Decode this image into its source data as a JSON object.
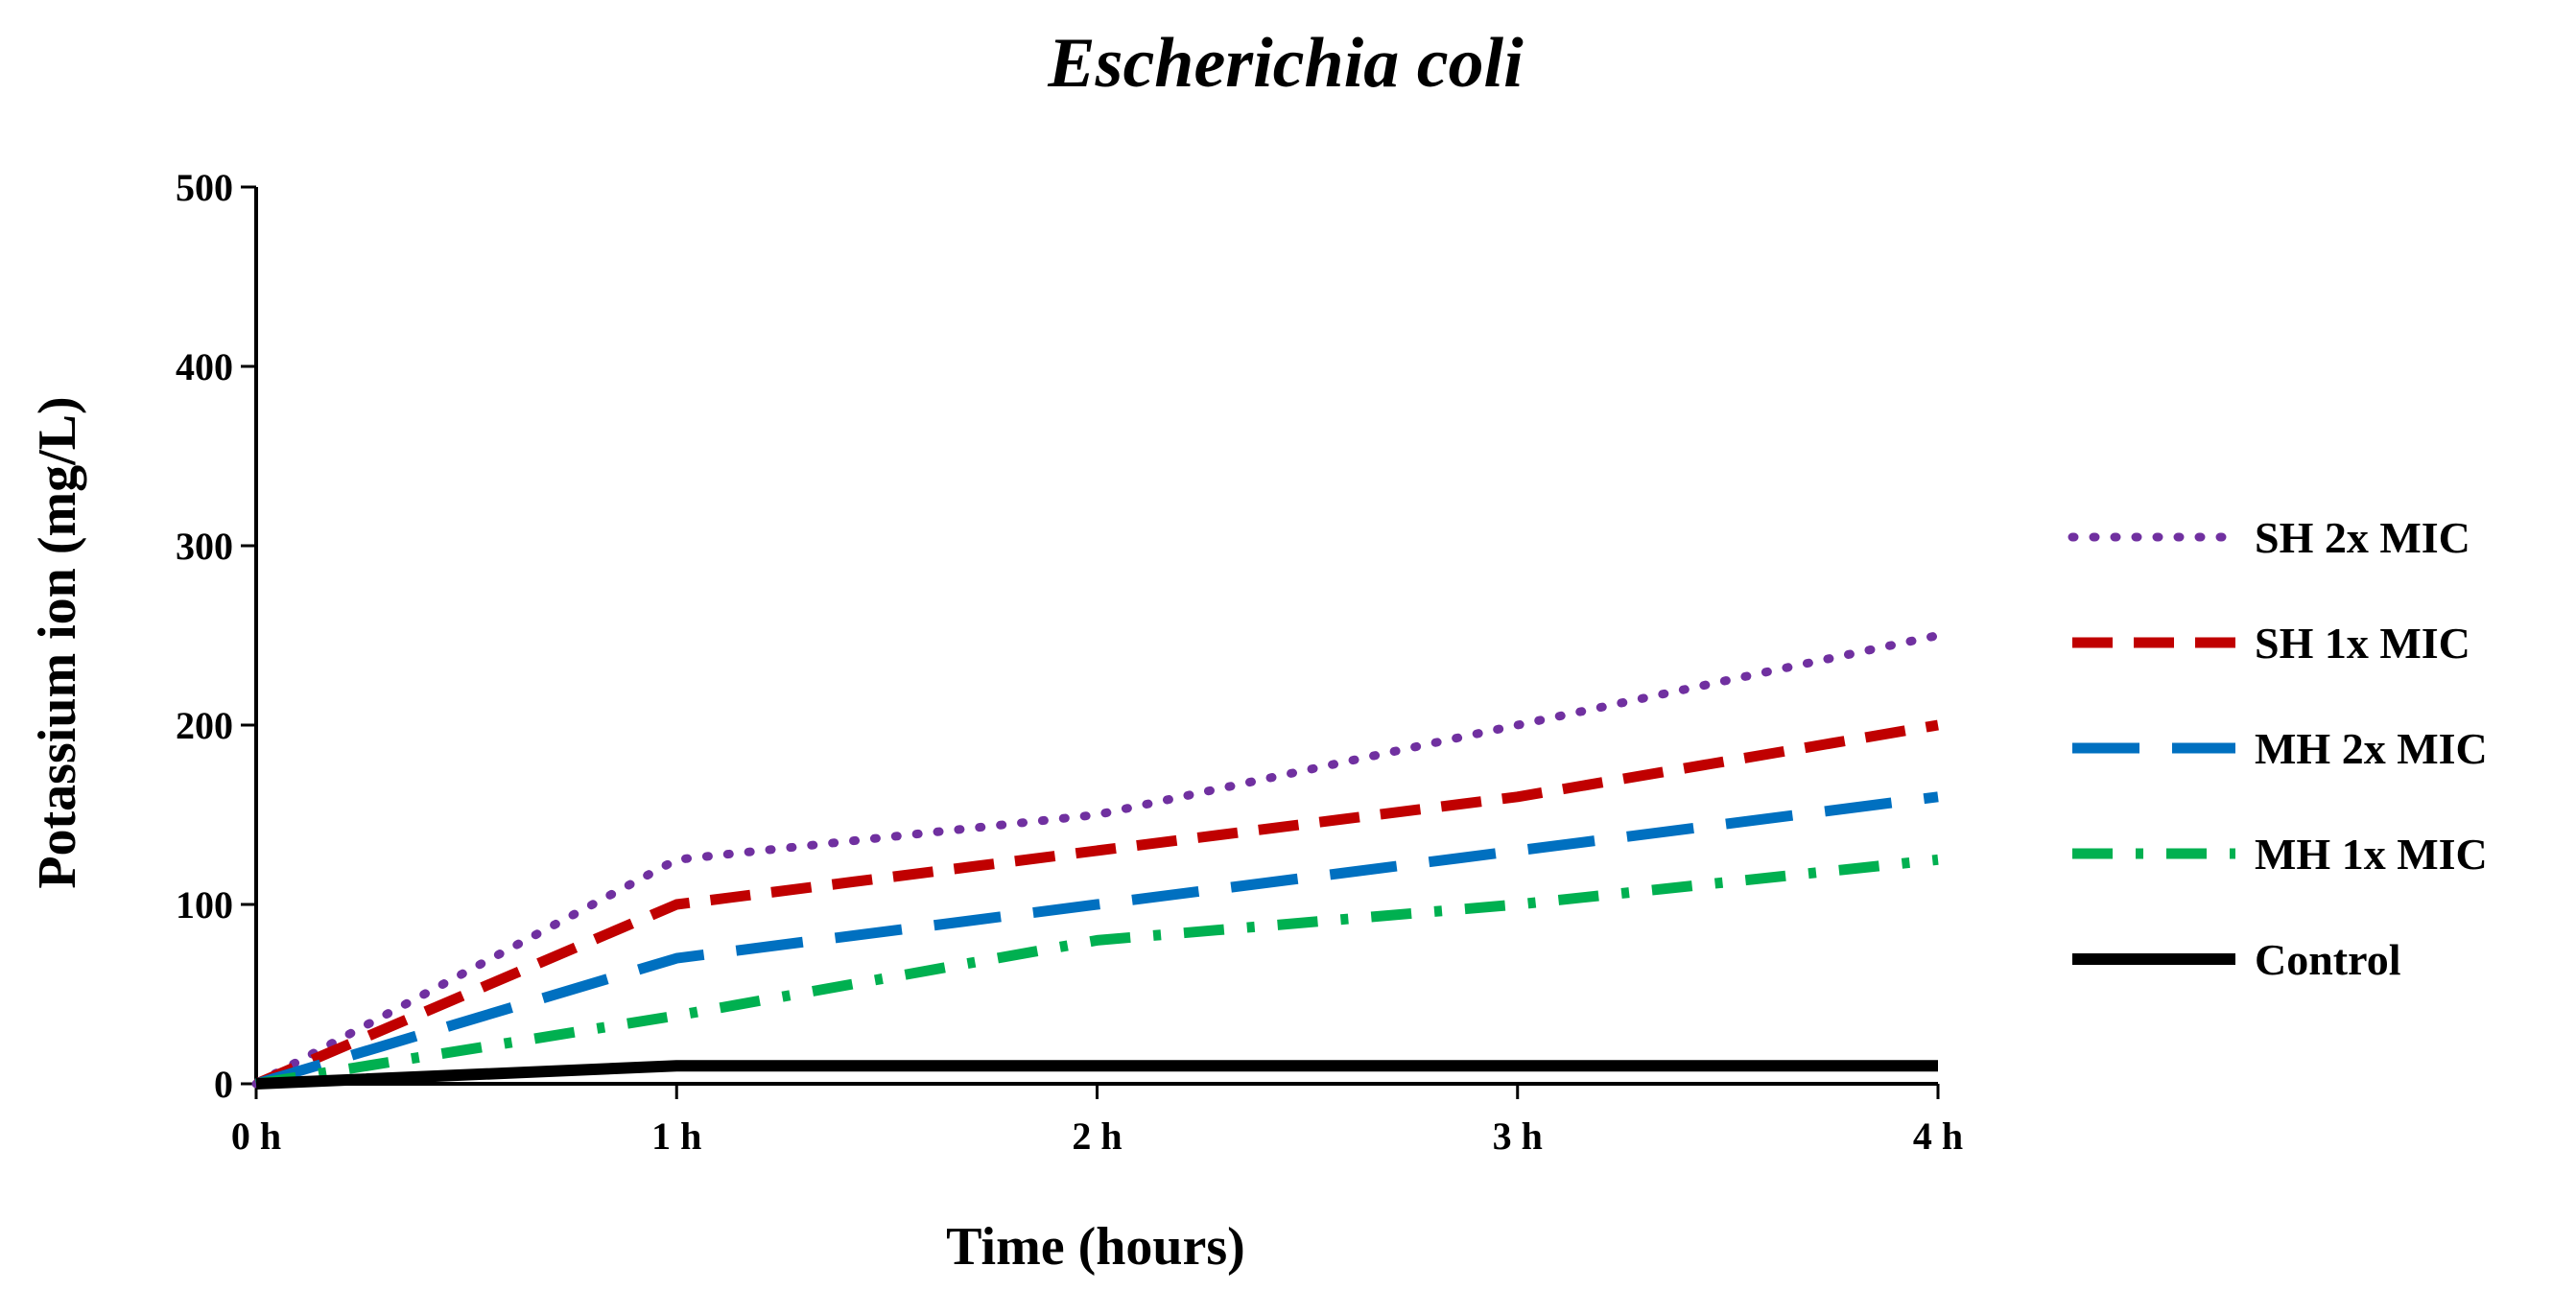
{
  "chart_data": {
    "type": "line",
    "title": "Escherichia coli",
    "xlabel": "Time (hours)",
    "ylabel": "Potassium ion (mg/L)",
    "x": [
      0,
      1,
      2,
      3,
      4
    ],
    "x_tick_labels": [
      "0 h",
      "1 h",
      "2 h",
      "3 h",
      "4 h"
    ],
    "xlim": [
      0,
      4
    ],
    "ylim": [
      0,
      500
    ],
    "y_ticks": [
      0,
      100,
      200,
      300,
      400,
      500
    ],
    "y_tick_labels": [
      "0",
      "100",
      "200",
      "300",
      "400",
      "500"
    ],
    "grid": false,
    "legend_position": "right",
    "series": [
      {
        "name": "SH 2x MIC",
        "values": [
          0,
          125,
          150,
          200,
          250
        ],
        "color": "#7030A0",
        "style": "dotted"
      },
      {
        "name": "SH 1x MIC",
        "values": [
          0,
          100,
          130,
          160,
          200
        ],
        "color": "#C00000",
        "style": "dashed"
      },
      {
        "name": "MH 2x MIC",
        "values": [
          0,
          70,
          100,
          130,
          160
        ],
        "color": "#0070C0",
        "style": "long-dash"
      },
      {
        "name": "MH 1x MIC",
        "values": [
          0,
          38,
          80,
          100,
          125
        ],
        "color": "#00B050",
        "style": "dash-dot"
      },
      {
        "name": "Control",
        "values": [
          0,
          10,
          10,
          10,
          10
        ],
        "color": "#000000",
        "style": "solid"
      }
    ]
  }
}
